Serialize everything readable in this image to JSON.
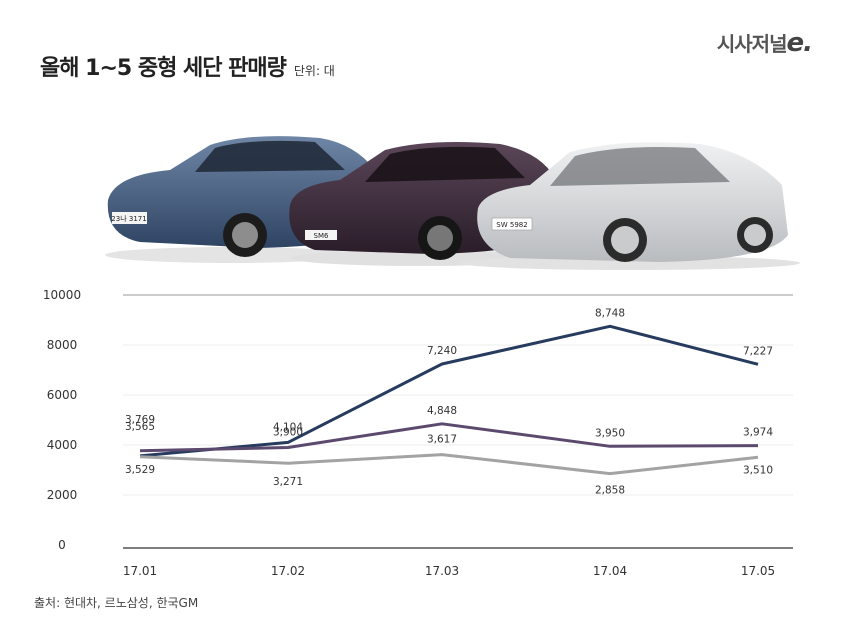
{
  "header": {
    "title": "올해 1~5 중형 세단 판매량",
    "unit": "단위: 대",
    "logo_text": "시사저널",
    "logo_mark": "e."
  },
  "source": "출처: 현대차, 르노삼성, 한국GM",
  "cars": {
    "plates": [
      "23나 3171",
      "SM6",
      "SW 5982"
    ],
    "colors": [
      "#3e5675",
      "#3c2b3a",
      "#d6d8da"
    ]
  },
  "chart_data": {
    "type": "line",
    "categories": [
      "17.01",
      "17.02",
      "17.03",
      "17.04",
      "17.05"
    ],
    "ylim": [
      0,
      10000
    ],
    "yticks": [
      "0",
      "2000",
      "4000",
      "6000",
      "8000",
      "10000"
    ],
    "grid": true,
    "legend": "none",
    "series": [
      {
        "values": [
          3565,
          4104,
          7240,
          8748,
          7227
        ],
        "labels": [
          "3,565",
          "4,104",
          "7,240",
          "8,748",
          "7,227"
        ],
        "color": "#263b5e"
      },
      {
        "values": [
          3769,
          3900,
          4848,
          3950,
          3974
        ],
        "labels": [
          "3,769",
          "3,900",
          "4,848",
          "3,950",
          "3,974"
        ],
        "color": "#5b4a6e"
      },
      {
        "values": [
          3529,
          3271,
          3617,
          2858,
          3510
        ],
        "labels": [
          "3,529",
          "3,271",
          "3,617",
          "2,858",
          "3,510"
        ],
        "color": "#a3a3a3"
      }
    ]
  }
}
